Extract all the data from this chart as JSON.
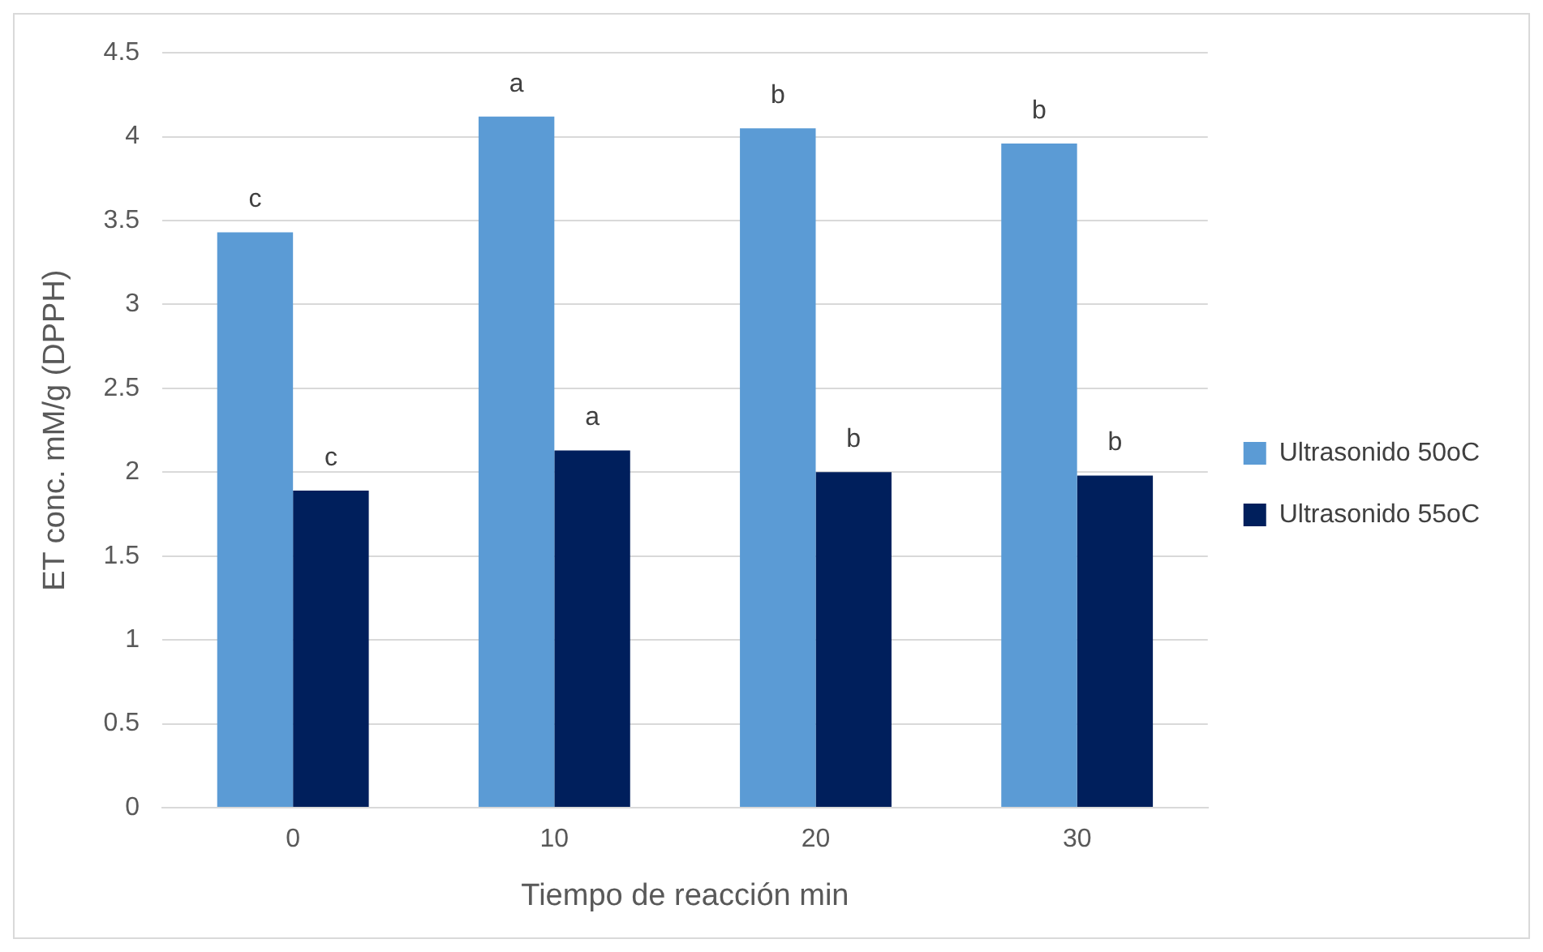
{
  "chart_data": {
    "type": "bar",
    "xlabel": "Tiempo de reacción min",
    "ylabel": "ET conc. mM/g (DPPH)",
    "categories": [
      "0",
      "10",
      "20",
      "30"
    ],
    "series": [
      {
        "name": "Ultrasonido 50oC",
        "color": "#5b9bd5",
        "values": [
          3.43,
          4.12,
          4.05,
          3.96
        ]
      },
      {
        "name": "Ultrasonido 55oC",
        "color": "#001f5c",
        "values": [
          1.89,
          2.13,
          2.0,
          1.98
        ]
      }
    ],
    "ylim": [
      0,
      4.5
    ],
    "yticks": [
      0,
      0.5,
      1,
      1.5,
      2,
      2.5,
      3,
      3.5,
      4,
      4.5
    ],
    "grid": "y",
    "legend": "right",
    "annotations": [
      {
        "text": "c",
        "x": "0",
        "y": 3.43
      },
      {
        "text": "a",
        "x": "10",
        "y": 4.12
      },
      {
        "text": "b",
        "x": "20",
        "y": 4.05
      },
      {
        "text": "b",
        "x": "30",
        "y": 3.96
      },
      {
        "text": "c",
        "x": "0",
        "y": 1.89
      },
      {
        "text": "a",
        "x": "10",
        "y": 2.13
      },
      {
        "text": "b",
        "x": "20",
        "y": 2.0
      },
      {
        "text": "b",
        "x": "30",
        "y": 1.98
      }
    ]
  }
}
